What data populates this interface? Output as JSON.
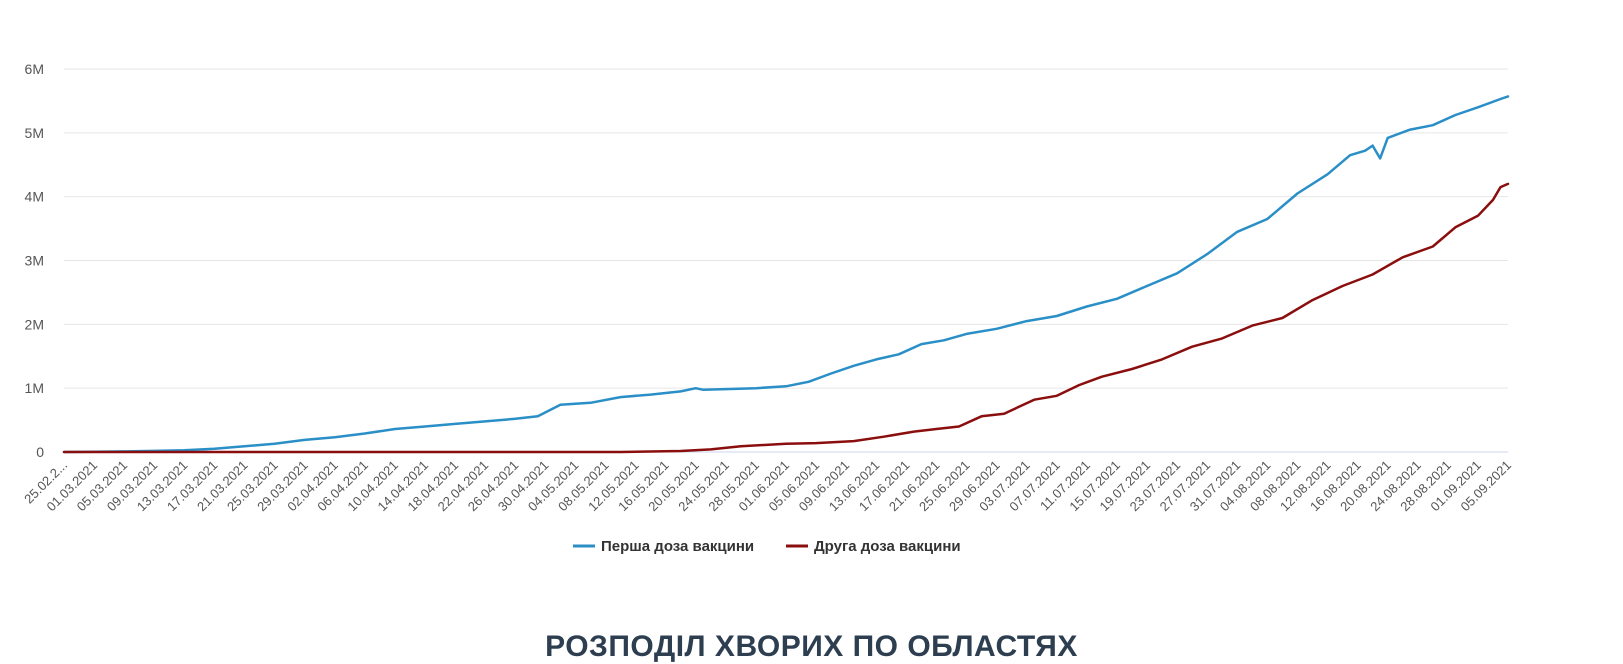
{
  "chart_data": {
    "type": "line",
    "title": "",
    "xlabel": "",
    "ylabel": "",
    "ylim": [
      0,
      6000000
    ],
    "yticks": [
      0,
      1000000,
      2000000,
      3000000,
      4000000,
      5000000,
      6000000
    ],
    "ytick_labels": [
      "0",
      "1M",
      "2M",
      "3M",
      "4M",
      "5M",
      "6M"
    ],
    "x_start": "25.02.2021",
    "x_end": "05.09.2021",
    "xticks": [
      "25.02.2...",
      "01.03.2021",
      "05.03.2021",
      "09.03.2021",
      "13.03.2021",
      "17.03.2021",
      "21.03.2021",
      "25.03.2021",
      "29.03.2021",
      "02.04.2021",
      "06.04.2021",
      "10.04.2021",
      "14.04.2021",
      "18.04.2021",
      "22.04.2021",
      "26.04.2021",
      "30.04.2021",
      "04.05.2021",
      "08.05.2021",
      "12.05.2021",
      "16.05.2021",
      "20.05.2021",
      "24.05.2021",
      "28.05.2021",
      "01.06.2021",
      "05.06.2021",
      "09.06.2021",
      "13.06.2021",
      "17.06.2021",
      "21.06.2021",
      "25.06.2021",
      "29.06.2021",
      "03.07.2021",
      "07.07.2021",
      "11.07.2021",
      "15.07.2021",
      "19.07.2021",
      "23.07.2021",
      "27.07.2021",
      "31.07.2021",
      "04.08.2021",
      "08.08.2021",
      "12.08.2021",
      "16.08.2021",
      "20.08.2021",
      "24.08.2021",
      "28.08.2021",
      "01.09.2021",
      "05.09.2021"
    ],
    "grid": true,
    "legend": "bottom-center",
    "series": [
      {
        "name": "Перша доза вакцини",
        "color": "#2b8fc7",
        "points": [
          [
            "25.02.2021",
            0
          ],
          [
            "01.03.2021",
            5000
          ],
          [
            "05.03.2021",
            10000
          ],
          [
            "09.03.2021",
            18000
          ],
          [
            "13.03.2021",
            28000
          ],
          [
            "17.03.2021",
            50000
          ],
          [
            "21.03.2021",
            90000
          ],
          [
            "25.03.2021",
            130000
          ],
          [
            "29.03.2021",
            190000
          ],
          [
            "02.04.2021",
            230000
          ],
          [
            "06.04.2021",
            290000
          ],
          [
            "10.04.2021",
            360000
          ],
          [
            "14.04.2021",
            400000
          ],
          [
            "18.04.2021",
            440000
          ],
          [
            "22.04.2021",
            480000
          ],
          [
            "26.04.2021",
            520000
          ],
          [
            "29.04.2021",
            560000
          ],
          [
            "02.05.2021",
            740000
          ],
          [
            "06.05.2021",
            770000
          ],
          [
            "10.05.2021",
            860000
          ],
          [
            "14.05.2021",
            900000
          ],
          [
            "18.05.2021",
            950000
          ],
          [
            "20.05.2021",
            1000000
          ],
          [
            "21.05.2021",
            975000
          ],
          [
            "24.05.2021",
            985000
          ],
          [
            "28.05.2021",
            1000000
          ],
          [
            "01.06.2021",
            1030000
          ],
          [
            "04.06.2021",
            1100000
          ],
          [
            "07.06.2021",
            1230000
          ],
          [
            "10.06.2021",
            1350000
          ],
          [
            "13.06.2021",
            1450000
          ],
          [
            "16.06.2021",
            1530000
          ],
          [
            "19.06.2021",
            1690000
          ],
          [
            "22.06.2021",
            1750000
          ],
          [
            "25.06.2021",
            1850000
          ],
          [
            "29.06.2021",
            1930000
          ],
          [
            "03.07.2021",
            2050000
          ],
          [
            "07.07.2021",
            2130000
          ],
          [
            "11.07.2021",
            2280000
          ],
          [
            "15.07.2021",
            2400000
          ],
          [
            "19.07.2021",
            2600000
          ],
          [
            "23.07.2021",
            2800000
          ],
          [
            "27.07.2021",
            3100000
          ],
          [
            "31.07.2021",
            3450000
          ],
          [
            "04.08.2021",
            3650000
          ],
          [
            "08.08.2021",
            4050000
          ],
          [
            "12.08.2021",
            4350000
          ],
          [
            "15.08.2021",
            4650000
          ],
          [
            "17.08.2021",
            4720000
          ],
          [
            "18.08.2021",
            4800000
          ],
          [
            "19.08.2021",
            4600000
          ],
          [
            "20.08.2021",
            4920000
          ],
          [
            "23.08.2021",
            5050000
          ],
          [
            "26.08.2021",
            5120000
          ],
          [
            "29.08.2021",
            5280000
          ],
          [
            "01.09.2021",
            5400000
          ],
          [
            "04.09.2021",
            5530000
          ],
          [
            "05.09.2021",
            5570000
          ]
        ]
      },
      {
        "name": "Друга доза вакцини",
        "color": "#8b0e0e",
        "points": [
          [
            "25.02.2021",
            0
          ],
          [
            "10.05.2021",
            0
          ],
          [
            "18.05.2021",
            15000
          ],
          [
            "22.05.2021",
            40000
          ],
          [
            "26.05.2021",
            90000
          ],
          [
            "01.06.2021",
            130000
          ],
          [
            "05.06.2021",
            140000
          ],
          [
            "10.06.2021",
            170000
          ],
          [
            "14.06.2021",
            240000
          ],
          [
            "18.06.2021",
            320000
          ],
          [
            "21.06.2021",
            360000
          ],
          [
            "24.06.2021",
            400000
          ],
          [
            "27.06.2021",
            560000
          ],
          [
            "30.06.2021",
            600000
          ],
          [
            "04.07.2021",
            820000
          ],
          [
            "07.07.2021",
            880000
          ],
          [
            "10.07.2021",
            1050000
          ],
          [
            "13.07.2021",
            1180000
          ],
          [
            "17.07.2021",
            1300000
          ],
          [
            "21.07.2021",
            1450000
          ],
          [
            "25.07.2021",
            1650000
          ],
          [
            "29.07.2021",
            1780000
          ],
          [
            "02.08.2021",
            1980000
          ],
          [
            "06.08.2021",
            2100000
          ],
          [
            "10.08.2021",
            2380000
          ],
          [
            "14.08.2021",
            2600000
          ],
          [
            "18.08.2021",
            2780000
          ],
          [
            "22.08.2021",
            3050000
          ],
          [
            "26.08.2021",
            3220000
          ],
          [
            "29.08.2021",
            3520000
          ],
          [
            "01.09.2021",
            3700000
          ],
          [
            "03.09.2021",
            3950000
          ],
          [
            "04.09.2021",
            4150000
          ],
          [
            "05.09.2021",
            4200000
          ]
        ]
      }
    ]
  },
  "section": {
    "title": "РОЗПОДІЛ ХВОРИХ ПО ОБЛАСТЯХ"
  }
}
